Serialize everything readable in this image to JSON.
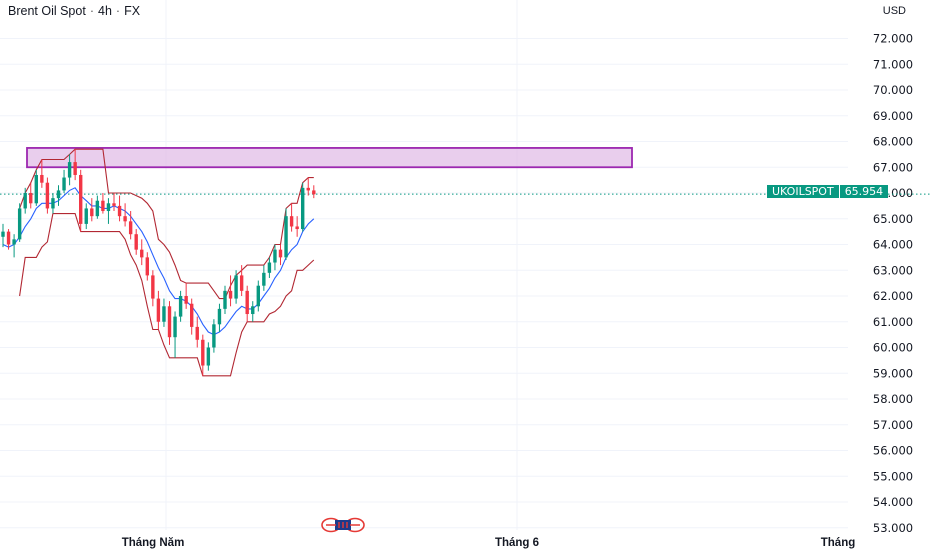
{
  "header": {
    "instrument": "Brent Oil Spot",
    "timeframe": "4h",
    "exchange": "FX",
    "separator": "·",
    "currency": "USD"
  },
  "price_tag": {
    "symbol": "UKOILSPOT",
    "value": "65.954",
    "color": "#089981"
  },
  "colors": {
    "up": "#089981",
    "down": "#f23645",
    "ma_blue": "#2962ff",
    "channel_red": "#b22833",
    "zone_border": "#9c27b0",
    "zone_fill": "#e1bee7",
    "grid": "#f0f3fa"
  },
  "chart_data": {
    "type": "candlestick",
    "title": "Brent Oil Spot · 4h · FX",
    "ylabel": "USD",
    "ylim": [
      52.5,
      73.3
    ],
    "y_ticks": [
      "72.000",
      "71.000",
      "70.000",
      "69.000",
      "68.000",
      "67.000",
      "66.000",
      "65.000",
      "64.000",
      "63.000",
      "62.000",
      "61.000",
      "60.000",
      "59.000",
      "58.000",
      "57.000",
      "56.000",
      "55.000",
      "54.000",
      "53.000"
    ],
    "x_ticks": [
      "Tháng Năm",
      "Tháng 6",
      "Tháng"
    ],
    "last_price": 65.954,
    "resistance_zone": {
      "low": 67.0,
      "high": 67.75
    },
    "ohlc": [
      [
        64.3,
        64.8,
        63.9,
        64.5
      ],
      [
        64.5,
        64.6,
        63.8,
        64.0
      ],
      [
        64.0,
        64.4,
        63.5,
        64.2
      ],
      [
        64.2,
        65.6,
        64.1,
        65.4
      ],
      [
        65.4,
        66.2,
        65.2,
        66.0
      ],
      [
        66.0,
        66.4,
        65.4,
        65.6
      ],
      [
        65.6,
        66.9,
        65.5,
        66.7
      ],
      [
        66.7,
        67.3,
        66.2,
        66.4
      ],
      [
        66.4,
        66.6,
        65.2,
        65.4
      ],
      [
        65.4,
        66.0,
        65.2,
        65.8
      ],
      [
        65.8,
        66.3,
        65.5,
        66.1
      ],
      [
        66.1,
        66.9,
        66.0,
        66.6
      ],
      [
        66.6,
        67.5,
        66.3,
        67.2
      ],
      [
        67.2,
        67.7,
        66.5,
        66.7
      ],
      [
        66.7,
        66.9,
        64.5,
        64.8
      ],
      [
        64.8,
        65.6,
        64.6,
        65.4
      ],
      [
        65.4,
        65.8,
        64.9,
        65.1
      ],
      [
        65.1,
        65.9,
        65.0,
        65.7
      ],
      [
        65.7,
        66.0,
        65.2,
        65.3
      ],
      [
        65.3,
        65.8,
        64.8,
        65.6
      ],
      [
        65.6,
        66.0,
        65.3,
        65.5
      ],
      [
        65.5,
        65.9,
        64.9,
        65.1
      ],
      [
        65.1,
        65.6,
        64.7,
        64.9
      ],
      [
        64.9,
        65.3,
        64.2,
        64.4
      ],
      [
        64.4,
        64.6,
        63.6,
        63.8
      ],
      [
        63.8,
        64.2,
        63.2,
        63.5
      ],
      [
        63.5,
        63.7,
        62.6,
        62.8
      ],
      [
        62.8,
        63.0,
        61.6,
        61.9
      ],
      [
        61.9,
        62.2,
        60.7,
        61.0
      ],
      [
        61.0,
        61.9,
        60.8,
        61.6
      ],
      [
        61.6,
        61.8,
        60.1,
        60.4
      ],
      [
        60.4,
        61.4,
        59.6,
        61.2
      ],
      [
        61.2,
        62.2,
        61.0,
        62.0
      ],
      [
        62.0,
        62.5,
        61.5,
        61.7
      ],
      [
        61.7,
        61.9,
        60.5,
        60.8
      ],
      [
        60.8,
        61.2,
        60.0,
        60.3
      ],
      [
        60.3,
        60.5,
        58.9,
        59.3
      ],
      [
        59.3,
        60.2,
        59.1,
        60.0
      ],
      [
        60.0,
        61.1,
        59.8,
        60.9
      ],
      [
        60.9,
        61.7,
        60.6,
        61.5
      ],
      [
        61.5,
        62.4,
        61.3,
        62.2
      ],
      [
        62.2,
        62.8,
        61.6,
        61.9
      ],
      [
        61.9,
        63.0,
        61.7,
        62.8
      ],
      [
        62.8,
        63.2,
        62.0,
        62.2
      ],
      [
        62.2,
        62.4,
        61.0,
        61.3
      ],
      [
        61.3,
        61.8,
        61.0,
        61.6
      ],
      [
        61.6,
        62.6,
        61.4,
        62.4
      ],
      [
        62.4,
        63.2,
        62.2,
        62.9
      ],
      [
        62.9,
        63.5,
        62.7,
        63.3
      ],
      [
        63.3,
        64.0,
        63.0,
        63.8
      ],
      [
        63.8,
        64.0,
        63.2,
        63.5
      ],
      [
        63.5,
        65.4,
        63.4,
        65.1
      ],
      [
        65.1,
        65.6,
        64.5,
        64.7
      ],
      [
        64.7,
        65.1,
        64.3,
        64.6
      ],
      [
        64.6,
        66.4,
        64.5,
        66.2
      ],
      [
        66.2,
        66.6,
        65.9,
        66.1
      ],
      [
        66.1,
        66.3,
        65.8,
        65.95
      ]
    ],
    "series": [
      {
        "name": "",
        "kind": "ma",
        "values": [
          64.0,
          63.9,
          64.0,
          64.3,
          64.7,
          65.0,
          65.4,
          65.6,
          65.6,
          65.6,
          65.7,
          65.9,
          66.1,
          66.2,
          65.9,
          65.7,
          65.5,
          65.5,
          65.4,
          65.4,
          65.5,
          65.4,
          65.3,
          65.1,
          64.8,
          64.5,
          64.1,
          63.6,
          63.1,
          62.7,
          62.2,
          61.9,
          61.9,
          61.8,
          61.6,
          61.3,
          60.9,
          60.6,
          60.5,
          60.6,
          60.8,
          61.1,
          61.4,
          61.6,
          61.5,
          61.5,
          61.7,
          62.0,
          62.3,
          62.7,
          63.0,
          63.5,
          63.8,
          64.0,
          64.5,
          64.8,
          65.0
        ]
      },
      {
        "name": "",
        "kind": "upper_channel",
        "values": [
          null,
          null,
          null,
          65.4,
          66.0,
          66.4,
          66.9,
          67.3,
          67.3,
          67.3,
          67.3,
          67.3,
          67.5,
          67.7,
          67.7,
          67.7,
          67.7,
          67.7,
          67.7,
          66.0,
          66.0,
          66.0,
          66.0,
          66.0,
          65.9,
          65.8,
          65.6,
          65.3,
          64.2,
          64.0,
          63.7,
          63.2,
          62.6,
          62.5,
          62.5,
          62.5,
          62.5,
          62.5,
          62.2,
          61.9,
          61.9,
          62.4,
          62.8,
          63.0,
          63.2,
          63.2,
          63.2,
          63.2,
          63.5,
          64.0,
          64.0,
          65.4,
          65.6,
          65.6,
          66.4,
          66.6,
          66.6
        ]
      },
      {
        "name": "",
        "kind": "lower_channel",
        "values": [
          null,
          null,
          null,
          62.0,
          63.5,
          63.5,
          63.5,
          63.9,
          64.1,
          65.2,
          65.2,
          65.2,
          65.2,
          65.2,
          64.5,
          64.5,
          64.5,
          64.5,
          64.5,
          64.5,
          64.5,
          64.5,
          64.2,
          63.6,
          63.2,
          62.6,
          61.6,
          60.7,
          60.7,
          60.1,
          59.6,
          59.6,
          59.6,
          59.6,
          59.6,
          59.6,
          58.9,
          58.9,
          58.9,
          58.9,
          58.9,
          58.9,
          59.8,
          60.6,
          61.0,
          61.0,
          61.0,
          61.0,
          61.3,
          61.4,
          61.6,
          62.0,
          62.2,
          63.0,
          63.0,
          63.2,
          63.4
        ]
      }
    ]
  }
}
